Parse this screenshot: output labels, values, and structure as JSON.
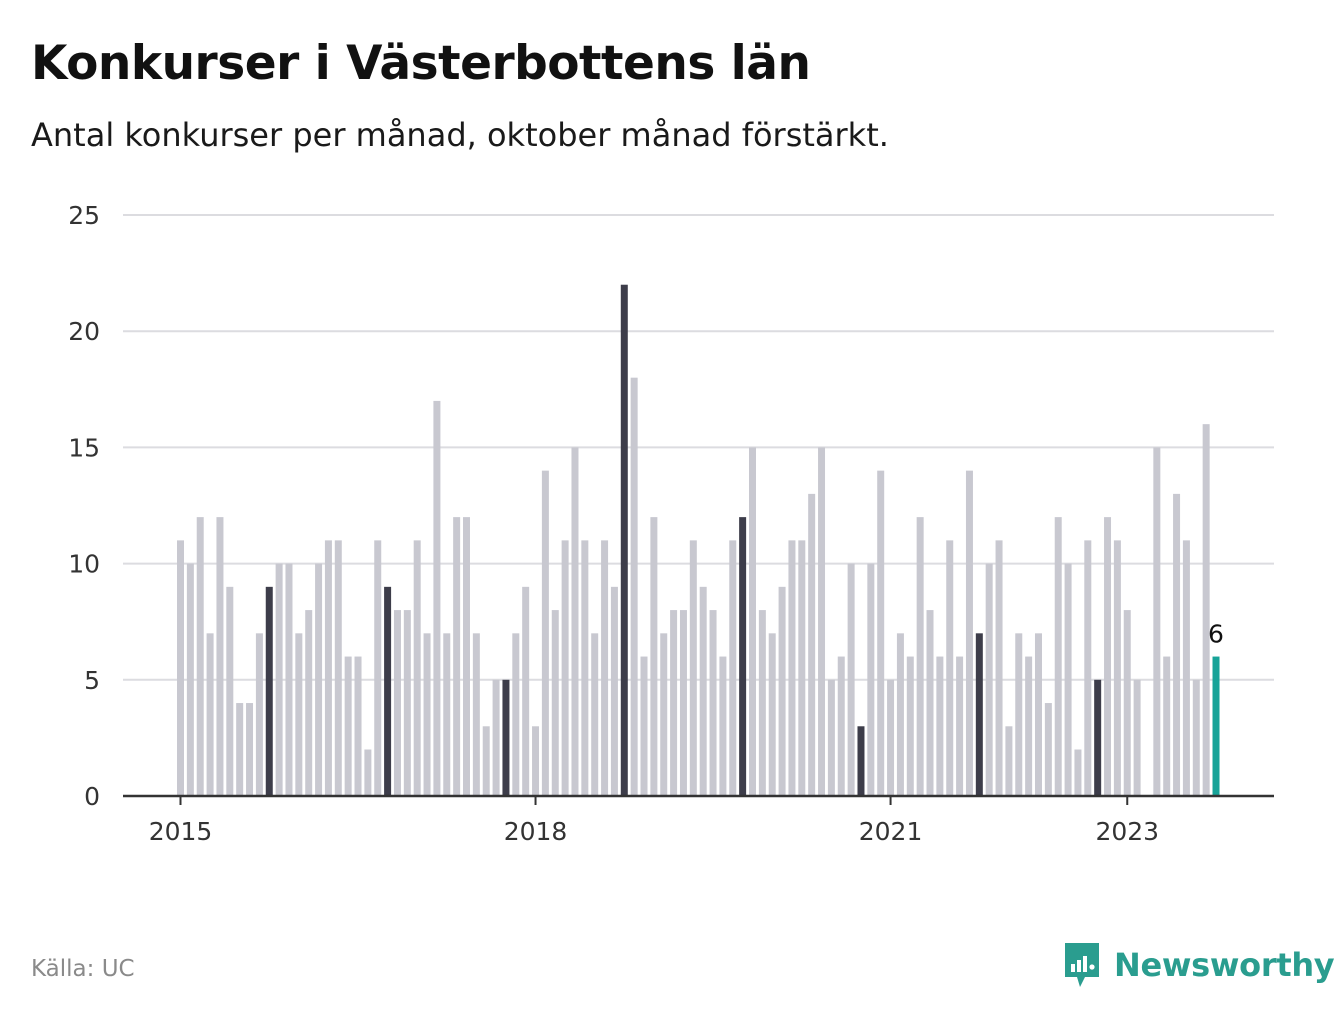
{
  "header": {
    "title": "Konkurser i Västerbottens län",
    "subtitle": "Antal konkurser per månad, oktober månad förstärkt."
  },
  "footer": {
    "source": "Källa: UC",
    "brand": "Newsworthy"
  },
  "colors": {
    "bar_default": "#c8c8d0",
    "bar_october": "#3d3d4a",
    "bar_latest": "#17a398",
    "grid": "#dcdce0",
    "axis": "#333333",
    "brand": "#2a9d8f"
  },
  "chart_data": {
    "type": "bar",
    "ylim": [
      0,
      25
    ],
    "yticks": [
      0,
      5,
      10,
      15,
      20,
      25
    ],
    "xticks": [
      {
        "label": "2015",
        "month_index": 0
      },
      {
        "label": "2018",
        "month_index": 36
      },
      {
        "label": "2021",
        "month_index": 72
      },
      {
        "label": "2023",
        "month_index": 96
      }
    ],
    "grid": true,
    "start": "2015-01",
    "highlight_month": "oktober",
    "values": [
      11,
      10,
      12,
      7,
      12,
      9,
      4,
      4,
      7,
      9,
      10,
      10,
      7,
      8,
      10,
      11,
      11,
      6,
      6,
      2,
      11,
      9,
      8,
      8,
      11,
      7,
      17,
      7,
      12,
      12,
      7,
      3,
      5,
      5,
      7,
      9,
      3,
      14,
      8,
      11,
      15,
      11,
      7,
      11,
      9,
      22,
      18,
      6,
      12,
      7,
      8,
      8,
      11,
      9,
      8,
      6,
      11,
      12,
      15,
      8,
      7,
      9,
      11,
      11,
      13,
      15,
      5,
      6,
      10,
      3,
      10,
      14,
      5,
      7,
      6,
      12,
      8,
      6,
      11,
      6,
      14,
      7,
      10,
      11,
      3,
      7,
      6,
      7,
      4,
      12,
      10,
      2,
      11,
      5,
      12,
      11,
      8,
      5,
      0,
      15,
      6,
      13,
      11,
      5,
      16,
      6
    ],
    "latest_label": "6"
  }
}
